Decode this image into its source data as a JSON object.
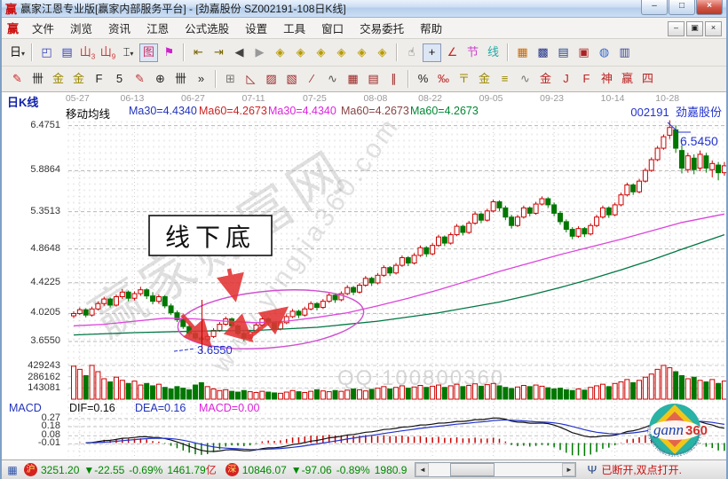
{
  "window": {
    "logo": "赢",
    "title": "赢家江恩专业版[赢家内部服务平台] - [劲嘉股份 SZ002191-108日K线]",
    "buttons": {
      "minimize": "–",
      "maximize": "□",
      "close": "×"
    },
    "inner_buttons": {
      "minimize": "–",
      "restore": "▣",
      "close": "×"
    }
  },
  "menu": {
    "items": [
      "文件",
      "浏览",
      "资讯",
      "江恩",
      "公式选股",
      "设置",
      "工具",
      "窗口",
      "交易委托",
      "帮助"
    ]
  },
  "toolbar_row1": [
    {
      "g": "日",
      "c": "#111111",
      "dd": true,
      "name": "period-selector-button"
    },
    {
      "sep": true
    },
    {
      "g": "◰",
      "c": "#3344bb",
      "name": "zoom-area-icon"
    },
    {
      "g": "▤",
      "c": "#3344bb",
      "name": "info-panel-icon"
    },
    {
      "g": "山",
      "sub": "3",
      "c": "#cc3333",
      "name": "chart-3-icon"
    },
    {
      "g": "山",
      "sub": "9",
      "c": "#cc3333",
      "name": "chart-9-icon"
    },
    {
      "g": "⌶",
      "c": "#111111",
      "dd": true,
      "name": "candle-style-selector"
    },
    {
      "g": "图",
      "c": "#cc3366",
      "pressed": true,
      "name": "draw-mode-icon"
    },
    {
      "g": "⚑",
      "c": "#cc22cc",
      "name": "flag-marker-icon"
    },
    {
      "sep": true
    },
    {
      "g": "⇤",
      "c": "#776600",
      "name": "first-page-icon"
    },
    {
      "g": "⇥",
      "c": "#776600",
      "name": "last-page-icon"
    },
    {
      "g": "◀",
      "c": "#444444",
      "name": "page-left-icon"
    },
    {
      "g": "▶",
      "c": "#999999",
      "name": "page-right-icon"
    },
    {
      "g": "◈",
      "c": "#b89a00",
      "name": "gann-diamond-1-icon"
    },
    {
      "g": "◈",
      "c": "#b89a00",
      "name": "gann-diamond-2-icon"
    },
    {
      "g": "◈",
      "c": "#b89a00",
      "name": "gann-diamond-3-icon"
    },
    {
      "g": "◈",
      "c": "#b89a00",
      "name": "gann-diamond-4-icon"
    },
    {
      "g": "◈",
      "c": "#b89a00",
      "name": "gann-diamond-5-icon"
    },
    {
      "g": "◈",
      "c": "#b89a00",
      "name": "gann-diamond-6-icon"
    },
    {
      "sep": true
    },
    {
      "g": "☝",
      "c": "#555555",
      "name": "hand-tool-icon"
    },
    {
      "g": "+",
      "c": "#111111",
      "pressed": true,
      "name": "crosshair-tool-icon"
    },
    {
      "g": "∠",
      "c": "#cc2222",
      "name": "angle-tool-icon"
    },
    {
      "g": "节",
      "c": "#cc44cc",
      "name": "festival-tool-icon"
    },
    {
      "g": "线",
      "c": "#22aaaa",
      "name": "line-tool-icon"
    },
    {
      "sep": true
    },
    {
      "g": "▦",
      "c": "#cc6600",
      "name": "calendar-icon"
    },
    {
      "g": "▩",
      "c": "#223388",
      "name": "calculator-icon"
    },
    {
      "g": "▤",
      "c": "#224488",
      "name": "report-icon"
    },
    {
      "g": "▣",
      "c": "#aa2222",
      "name": "save-icon"
    },
    {
      "g": "◍",
      "c": "#3366cc",
      "name": "sync-icon"
    },
    {
      "g": "▥",
      "c": "#334499",
      "name": "trade-icon"
    }
  ],
  "toolbar_row2": [
    {
      "g": "✎",
      "c": "#cc2222",
      "name": "pencil-ruler-icon"
    },
    {
      "g": "卌",
      "c": "#222222",
      "name": "grid-comb-icon"
    },
    {
      "g": "金",
      "c": "#998800",
      "name": "gold-grid-icon"
    },
    {
      "g": "金",
      "c": "#998800",
      "name": "gold-grid-2-icon"
    },
    {
      "g": "F",
      "c": "#222222",
      "name": "fib-grid-icon"
    },
    {
      "g": "5",
      "c": "#222222",
      "name": "five-grid-icon"
    },
    {
      "g": "✎",
      "c": "#bb3333",
      "name": "draw-pencil-icon"
    },
    {
      "g": "⊕",
      "c": "#222222",
      "name": "circle-grid-icon"
    },
    {
      "g": "卌",
      "c": "#222222",
      "name": "comb-2-icon"
    },
    {
      "g": "»",
      "c": "#222222",
      "name": "more-tools-chevron"
    },
    {
      "sep": true
    },
    {
      "g": "⊞",
      "c": "#777777",
      "name": "window-grid-icon"
    },
    {
      "g": "◺",
      "c": "#992222",
      "name": "fan-lines-icon"
    },
    {
      "g": "▨",
      "c": "#992222",
      "name": "shaded-box-icon"
    },
    {
      "g": "▧",
      "c": "#992222",
      "name": "shaded-box-2-icon"
    },
    {
      "g": "∕",
      "c": "#992222",
      "name": "angle-line-icon"
    },
    {
      "g": "∿",
      "c": "#555555",
      "name": "wave-line-icon"
    },
    {
      "g": "▦",
      "c": "#992222",
      "name": "price-grid-icon"
    },
    {
      "g": "▤",
      "c": "#992222",
      "name": "band-grid-icon"
    },
    {
      "g": "∥",
      "c": "#992222",
      "name": "parallel-lines-icon"
    },
    {
      "sep": true
    },
    {
      "g": "%",
      "c": "#222222",
      "name": "percent-icon"
    },
    {
      "g": "‰",
      "c": "#bb2222",
      "name": "permille-icon"
    },
    {
      "g": "〒",
      "c": "#998800",
      "name": "level-lines-icon"
    },
    {
      "g": "金",
      "c": "#998800",
      "name": "gold-circle-icon"
    },
    {
      "g": "≡",
      "c": "#998800",
      "name": "gold-levels-icon"
    },
    {
      "g": "∿",
      "c": "#777777",
      "name": "wave-2-icon"
    },
    {
      "g": "金",
      "c": "#bb2222",
      "name": "gold-angle-icon"
    },
    {
      "g": "J",
      "c": "#bb2222",
      "name": "j-angle-icon"
    },
    {
      "g": "F",
      "c": "#bb2222",
      "name": "f-angle-icon"
    },
    {
      "g": "神",
      "c": "#bb2222",
      "name": "shen-angle-icon"
    },
    {
      "g": "赢",
      "c": "#bb2222",
      "name": "win-angle-icon"
    },
    {
      "g": "四",
      "c": "#bb2222",
      "name": "four-tool-icon"
    }
  ],
  "chart_data": {
    "type": "candlestick",
    "period_label": "日K线",
    "stock": {
      "code": "002191",
      "name": "劲嘉股份"
    },
    "legend": [
      {
        "text": "移动均线",
        "color": "#000000"
      },
      {
        "text": "Ma30=4.4340",
        "color": "#2233bb"
      },
      {
        "text": "Ma60=4.2673",
        "color": "#cc2222"
      },
      {
        "text": "Ma30=4.4340",
        "color": "#dd22dd"
      },
      {
        "text": "Ma60=4.2673",
        "color": "#884444"
      },
      {
        "text": "Ma60=4.2673",
        "color": "#008833"
      }
    ],
    "dates": [
      {
        "label": "05-27",
        "i": 1
      },
      {
        "label": "06-13",
        "i": 10
      },
      {
        "label": "06-27",
        "i": 20
      },
      {
        "label": "07-11",
        "i": 30
      },
      {
        "label": "07-25",
        "i": 40
      },
      {
        "label": "08-08",
        "i": 50
      },
      {
        "label": "08-22",
        "i": 59
      },
      {
        "label": "09-05",
        "i": 69
      },
      {
        "label": "09-23",
        "i": 79
      },
      {
        "label": "10-14",
        "i": 89
      },
      {
        "label": "10-28",
        "i": 98
      }
    ],
    "price_axis": [
      "6.4751",
      "5.8864",
      "5.3513",
      "4.8648",
      "4.4225",
      "4.0205",
      "3.6550"
    ],
    "volume_axis": [
      "429243",
      "286162",
      "143081"
    ],
    "candles": [
      [
        3.99,
        4.05,
        3.96,
        4.02
      ],
      [
        4.02,
        4.1,
        4.0,
        4.07
      ],
      [
        4.07,
        4.09,
        3.97,
        4.0
      ],
      [
        4.0,
        4.11,
        3.98,
        4.08
      ],
      [
        4.08,
        4.18,
        4.06,
        4.15
      ],
      [
        4.15,
        4.24,
        4.12,
        4.21
      ],
      [
        4.21,
        4.23,
        4.1,
        4.13
      ],
      [
        4.13,
        4.27,
        4.11,
        4.24
      ],
      [
        4.24,
        4.34,
        4.21,
        4.3
      ],
      [
        4.3,
        4.32,
        4.18,
        4.22
      ],
      [
        4.22,
        4.31,
        4.19,
        4.28
      ],
      [
        4.28,
        4.37,
        4.25,
        4.33
      ],
      [
        4.33,
        4.35,
        4.21,
        4.25
      ],
      [
        4.25,
        4.3,
        4.14,
        4.18
      ],
      [
        4.18,
        4.27,
        4.15,
        4.24
      ],
      [
        4.24,
        4.26,
        4.09,
        4.12
      ],
      [
        4.12,
        4.15,
        4.0,
        4.03
      ],
      [
        4.03,
        4.06,
        3.91,
        3.94
      ],
      [
        3.94,
        3.97,
        3.82,
        3.85
      ],
      [
        3.85,
        3.88,
        3.73,
        3.76
      ],
      [
        3.76,
        3.79,
        3.67,
        3.7
      ],
      [
        3.7,
        3.73,
        3.655,
        3.68
      ],
      [
        3.68,
        3.76,
        3.66,
        3.72
      ],
      [
        3.72,
        3.83,
        3.7,
        3.8
      ],
      [
        3.8,
        3.91,
        3.78,
        3.88
      ],
      [
        3.88,
        3.98,
        3.86,
        3.95
      ],
      [
        3.95,
        3.97,
        3.83,
        3.86
      ],
      [
        3.86,
        3.88,
        3.73,
        3.76
      ],
      [
        3.76,
        3.79,
        3.66,
        3.7
      ],
      [
        3.7,
        3.81,
        3.68,
        3.78
      ],
      [
        3.78,
        3.9,
        3.76,
        3.87
      ],
      [
        3.87,
        3.98,
        3.85,
        3.95
      ],
      [
        3.95,
        3.97,
        3.86,
        3.9
      ],
      [
        3.9,
        3.92,
        3.79,
        3.82
      ],
      [
        3.82,
        3.93,
        3.8,
        3.9
      ],
      [
        3.9,
        4.01,
        3.88,
        3.98
      ],
      [
        3.98,
        4.08,
        3.96,
        4.05
      ],
      [
        4.05,
        4.07,
        3.96,
        4.0
      ],
      [
        4.0,
        4.11,
        3.98,
        4.08
      ],
      [
        4.08,
        4.18,
        4.06,
        4.15
      ],
      [
        4.15,
        4.17,
        4.06,
        4.1
      ],
      [
        4.1,
        4.21,
        4.08,
        4.18
      ],
      [
        4.18,
        4.29,
        4.16,
        4.26
      ],
      [
        4.26,
        4.28,
        4.16,
        4.2
      ],
      [
        4.2,
        4.31,
        4.18,
        4.28
      ],
      [
        4.28,
        4.39,
        4.26,
        4.36
      ],
      [
        4.36,
        4.38,
        4.26,
        4.3
      ],
      [
        4.3,
        4.42,
        4.28,
        4.39
      ],
      [
        4.39,
        4.51,
        4.37,
        4.48
      ],
      [
        4.48,
        4.5,
        4.38,
        4.42
      ],
      [
        4.42,
        4.55,
        4.4,
        4.52
      ],
      [
        4.52,
        4.65,
        4.5,
        4.62
      ],
      [
        4.62,
        4.64,
        4.51,
        4.55
      ],
      [
        4.55,
        4.68,
        4.53,
        4.65
      ],
      [
        4.65,
        4.78,
        4.63,
        4.75
      ],
      [
        4.75,
        4.77,
        4.64,
        4.68
      ],
      [
        4.68,
        4.81,
        4.66,
        4.78
      ],
      [
        4.78,
        4.91,
        4.76,
        4.88
      ],
      [
        4.88,
        4.9,
        4.76,
        4.8
      ],
      [
        4.8,
        4.94,
        4.78,
        4.91
      ],
      [
        4.91,
        5.05,
        4.89,
        5.02
      ],
      [
        5.02,
        5.04,
        4.9,
        4.94
      ],
      [
        4.94,
        5.08,
        4.92,
        5.05
      ],
      [
        5.05,
        5.19,
        5.03,
        5.16
      ],
      [
        5.16,
        5.18,
        5.04,
        5.08
      ],
      [
        5.08,
        5.23,
        5.06,
        5.2
      ],
      [
        5.2,
        5.35,
        5.18,
        5.32
      ],
      [
        5.32,
        5.34,
        5.2,
        5.24
      ],
      [
        5.24,
        5.39,
        5.22,
        5.36
      ],
      [
        5.36,
        5.51,
        5.34,
        5.48
      ],
      [
        5.48,
        5.5,
        5.36,
        5.4
      ],
      [
        5.4,
        5.43,
        5.24,
        5.28
      ],
      [
        5.28,
        5.31,
        5.13,
        5.17
      ],
      [
        5.17,
        5.31,
        5.15,
        5.28
      ],
      [
        5.28,
        5.43,
        5.26,
        5.4
      ],
      [
        5.4,
        5.42,
        5.29,
        5.33
      ],
      [
        5.33,
        5.48,
        5.31,
        5.45
      ],
      [
        5.45,
        5.55,
        5.43,
        5.52
      ],
      [
        5.52,
        5.54,
        5.4,
        5.44
      ],
      [
        5.44,
        5.47,
        5.29,
        5.33
      ],
      [
        5.33,
        5.36,
        5.18,
        5.22
      ],
      [
        5.22,
        5.25,
        5.08,
        5.12
      ],
      [
        5.12,
        5.15,
        4.99,
        5.03
      ],
      [
        5.03,
        5.16,
        5.01,
        5.13
      ],
      [
        5.13,
        5.15,
        5.02,
        5.06
      ],
      [
        5.06,
        5.2,
        5.04,
        5.17
      ],
      [
        5.17,
        5.31,
        5.15,
        5.28
      ],
      [
        5.28,
        5.43,
        5.26,
        5.4
      ],
      [
        5.4,
        5.42,
        5.27,
        5.31
      ],
      [
        5.31,
        5.47,
        5.29,
        5.44
      ],
      [
        5.44,
        5.6,
        5.42,
        5.57
      ],
      [
        5.57,
        5.73,
        5.55,
        5.7
      ],
      [
        5.7,
        5.72,
        5.57,
        5.61
      ],
      [
        5.61,
        5.78,
        5.59,
        5.75
      ],
      [
        5.75,
        5.92,
        5.73,
        5.89
      ],
      [
        5.89,
        6.06,
        5.87,
        6.03
      ],
      [
        6.03,
        6.21,
        6.01,
        6.18
      ],
      [
        6.18,
        6.36,
        6.16,
        6.33
      ],
      [
        6.35,
        6.545,
        6.3,
        6.45
      ],
      [
        6.42,
        6.48,
        6.12,
        6.18
      ],
      [
        6.15,
        6.22,
        5.85,
        5.92
      ],
      [
        5.9,
        6.12,
        5.86,
        6.08
      ],
      [
        6.05,
        6.1,
        5.84,
        5.9
      ],
      [
        5.92,
        6.15,
        5.88,
        6.1
      ],
      [
        6.08,
        6.12,
        5.86,
        5.92
      ],
      [
        5.9,
        6.02,
        5.8,
        5.98
      ],
      [
        5.96,
        6.0,
        5.76,
        5.86
      ],
      [
        5.86,
        6.0,
        5.82,
        5.95
      ]
    ],
    "volumes": [
      420000,
      380000,
      300000,
      430000,
      350000,
      260000,
      220000,
      280000,
      240000,
      200000,
      230000,
      180000,
      200000,
      170000,
      190000,
      150000,
      130000,
      160000,
      140000,
      120000,
      180000,
      210000,
      160000,
      130000,
      110000,
      120000,
      100000,
      90000,
      110000,
      95000,
      85000,
      100000,
      90000,
      80000,
      75000,
      90000,
      110000,
      95000,
      85000,
      100000,
      120000,
      105000,
      95000,
      110000,
      100000,
      115000,
      130000,
      120000,
      105000,
      125000,
      140000,
      160000,
      130000,
      150000,
      170000,
      140000,
      155000,
      175000,
      150000,
      165000,
      180000,
      150000,
      170000,
      190000,
      160000,
      175000,
      195000,
      165000,
      185000,
      200000,
      170000,
      150000,
      135000,
      155000,
      175000,
      160000,
      180000,
      165000,
      145000,
      130000,
      140000,
      120000,
      110000,
      130000,
      115000,
      150000,
      170000,
      190000,
      160000,
      200000,
      220000,
      250000,
      210000,
      240000,
      280000,
      320000,
      380000,
      430000,
      400000,
      350000,
      300000,
      260000,
      280000,
      240000,
      220000,
      250000,
      200000,
      230000
    ],
    "ma30": [
      [
        0,
        3.86
      ],
      [
        5,
        3.88
      ],
      [
        10,
        3.92
      ],
      [
        15,
        3.96
      ],
      [
        20,
        3.95
      ],
      [
        25,
        3.92
      ],
      [
        30,
        3.9
      ],
      [
        35,
        3.92
      ],
      [
        40,
        3.97
      ],
      [
        45,
        4.03
      ],
      [
        50,
        4.12
      ],
      [
        55,
        4.22
      ],
      [
        60,
        4.33
      ],
      [
        65,
        4.45
      ],
      [
        70,
        4.57
      ],
      [
        75,
        4.68
      ],
      [
        80,
        4.79
      ],
      [
        85,
        4.89
      ],
      [
        90,
        4.99
      ],
      [
        95,
        5.1
      ],
      [
        100,
        5.21
      ],
      [
        107,
        5.32
      ]
    ],
    "ma60": [
      [
        0,
        3.74
      ],
      [
        10,
        3.77
      ],
      [
        20,
        3.79
      ],
      [
        30,
        3.8
      ],
      [
        40,
        3.84
      ],
      [
        50,
        3.92
      ],
      [
        60,
        4.03
      ],
      [
        70,
        4.17
      ],
      [
        75,
        4.26
      ],
      [
        80,
        4.36
      ],
      [
        85,
        4.47
      ],
      [
        90,
        4.59
      ],
      [
        95,
        4.72
      ],
      [
        100,
        4.86
      ],
      [
        107,
        5.05
      ]
    ],
    "annotations": {
      "box_label": "线下底",
      "low_label": "3.6550",
      "high_label": "6.5450",
      "watermark1": "赢家财富网",
      "watermark2": "www.yingjia360.com",
      "watermark3": "QQ:100800360"
    },
    "colors": {
      "up": "#cc0000",
      "down": "#007700",
      "ma30": "#dd44dd",
      "ma60": "#007744",
      "annotation": "#e23333",
      "ellipse": "#d050d0",
      "label_blue": "#2233cc"
    }
  },
  "macd": {
    "label": "MACD",
    "dif": "DIF=0.16",
    "dea": "DEA=0.16",
    "macd": "MACD=0.00",
    "axis": [
      "0.27",
      "0.18",
      "0.08",
      "-0.01"
    ]
  },
  "gann_logo": {
    "brand": "gann",
    "number": "360",
    "rim": "2345678901234567890123456789"
  },
  "status": {
    "icons": {
      "grid": "▦",
      "antenna": "Ψ",
      "scroll_left": "◄",
      "scroll_right": "►"
    },
    "sh_label": "沪",
    "sh_index": "3251.20",
    "sh_change": "▼-22.55",
    "sh_pct": "-0.69%",
    "sh_amount": "1461.79",
    "sh_amount_unit": "亿",
    "sz_label": "深",
    "sz_index": "10846.07",
    "sz_change": "▼-97.06",
    "sz_pct": "-0.89%",
    "sz_amount": "1980.9",
    "connection": "已断开,双点打开."
  }
}
